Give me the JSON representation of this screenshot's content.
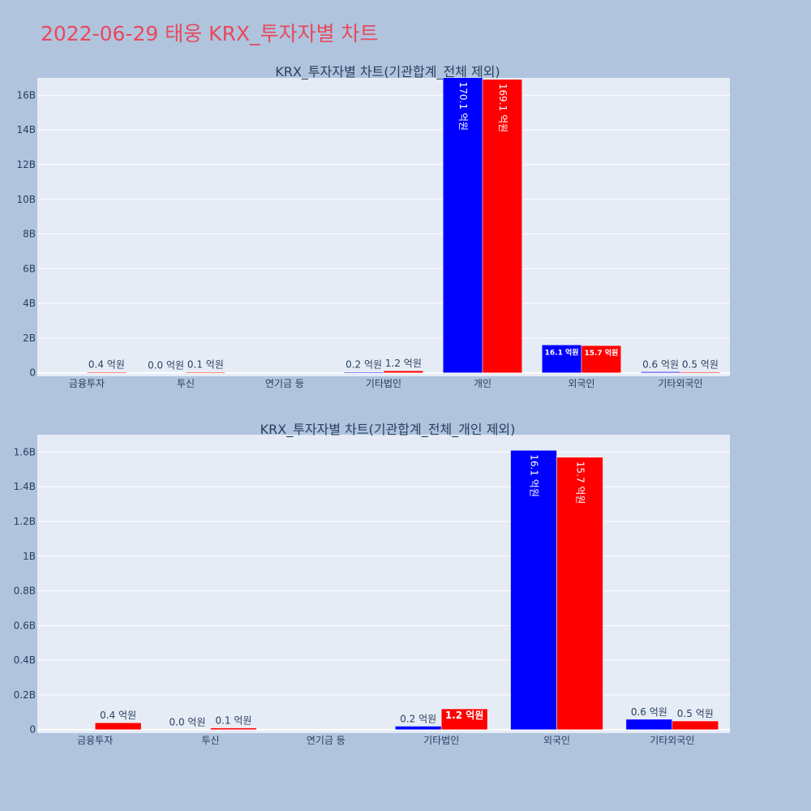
{
  "title": "2022-06-29 태웅 KRX_투자자별 차트",
  "colors": {
    "buy": "#0000ff",
    "sell": "#ff0000",
    "plot_bg": "#e5ecf6",
    "page_bg": "#b0c4de",
    "title": "#e8495c",
    "text": "#2a3f5f"
  },
  "chart_data": [
    {
      "type": "bar",
      "title": "KRX_투자자별 차트(기관합계_전체 제외)",
      "categories": [
        "금융투자",
        "투신",
        "연기금 등",
        "기타법인",
        "개인",
        "외국인",
        "기타외국인"
      ],
      "ylim": [
        -200000000,
        17000000000
      ],
      "yticks": [
        0,
        2000000000,
        4000000000,
        6000000000,
        8000000000,
        10000000000,
        12000000000,
        14000000000,
        16000000000
      ],
      "yticklabels": [
        "0",
        "2B",
        "4B",
        "6B",
        "8B",
        "10B",
        "12B",
        "14B",
        "16B"
      ],
      "grid": true,
      "series": [
        {
          "values": [
            0,
            0,
            0,
            20000000,
            17010000000,
            1610000000,
            60000000
          ],
          "labels": [
            "",
            "0.0 억원",
            "",
            "0.2 억원",
            "170.1 억원",
            "16.1 억원",
            "0.6 억원"
          ]
        },
        {
          "values": [
            40000000,
            10000000,
            0,
            120000000,
            16910000000,
            1570000000,
            50000000
          ],
          "labels": [
            "0.4 억원",
            "0.1 억원",
            "",
            "1.2 억원",
            "169.1 억원",
            "15.7 억원",
            "0.5 억원"
          ]
        }
      ]
    },
    {
      "type": "bar",
      "title": "KRX_투자자별 차트(기관합계_전체_개인 제외)",
      "categories": [
        "금융투자",
        "투신",
        "연기금 등",
        "기타법인",
        "외국인",
        "기타외국인"
      ],
      "ylim": [
        -20000000,
        1700000000
      ],
      "yticks": [
        0,
        200000000,
        400000000,
        600000000,
        800000000,
        1000000000,
        1200000000,
        1400000000,
        1600000000
      ],
      "yticklabels": [
        "0",
        "0.2B",
        "0.4B",
        "0.6B",
        "0.8B",
        "1B",
        "1.2B",
        "1.4B",
        "1.6B"
      ],
      "grid": true,
      "series": [
        {
          "values": [
            0,
            0,
            0,
            20000000,
            1610000000,
            60000000
          ],
          "labels": [
            "",
            "0.0 억원",
            "",
            "0.2 억원",
            "16.1 억원",
            "0.6 억원"
          ]
        },
        {
          "values": [
            40000000,
            10000000,
            0,
            120000000,
            1570000000,
            50000000
          ],
          "labels": [
            "0.4 억원",
            "0.1 억원",
            "",
            "1.2 억원",
            "15.7 억원",
            "0.5 억원"
          ]
        }
      ]
    }
  ]
}
